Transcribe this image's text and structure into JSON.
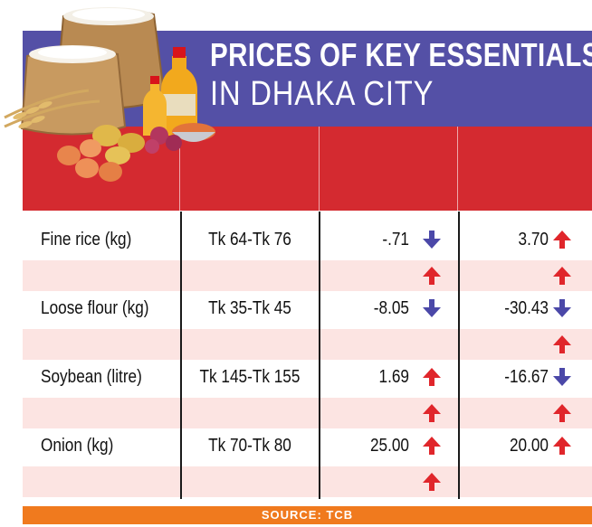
{
  "title": {
    "line1": "PRICES OF KEY ESSENTIALS",
    "line2": "IN DHAKA CITY"
  },
  "source": "SOURCE: TCB",
  "colors": {
    "title_band": "#5450a6",
    "header_band": "#d42a30",
    "row_band": "#fce4e2",
    "source_bar": "#f07a1e",
    "up_arrow": "#e0262b",
    "down_arrow": "#4b48a8"
  },
  "illustration": {
    "icon": "grocery-staples-illustration"
  },
  "chart_data": {
    "type": "table",
    "columns": [
      "",
      "",
      "",
      ""
    ],
    "rows": [
      {
        "item": "Fine rice (kg)",
        "price": "Tk 64-Tk 76",
        "change1": "-.71",
        "change1_dir": "down",
        "change2": "3.70",
        "change2_dir": "up",
        "sub1_dir": "up",
        "sub2_dir": "up"
      },
      {
        "item": "Loose flour (kg)",
        "price": "Tk 35-Tk 45",
        "change1": "-8.05",
        "change1_dir": "down",
        "change2": "-30.43",
        "change2_dir": "down",
        "sub1_dir": "",
        "sub2_dir": "up"
      },
      {
        "item": "Soybean (litre)",
        "price": "Tk 145-Tk 155",
        "change1": "1.69",
        "change1_dir": "up",
        "change2": "-16.67",
        "change2_dir": "down",
        "sub1_dir": "up",
        "sub2_dir": "up"
      },
      {
        "item": "Onion (kg)",
        "price": "Tk 70-Tk 80",
        "change1": "25.00",
        "change1_dir": "up",
        "change2": "20.00",
        "change2_dir": "up",
        "sub1_dir": "up",
        "sub2_dir": ""
      }
    ]
  }
}
